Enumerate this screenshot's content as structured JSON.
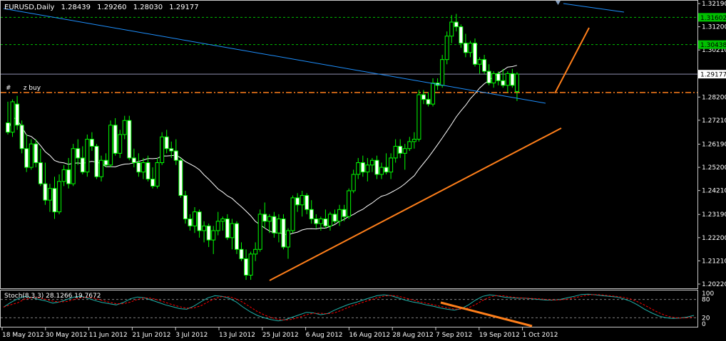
{
  "header": {
    "symbol": "EURUSD,Daily",
    "open": "1.28439",
    "high": "1.29260",
    "low": "1.28030",
    "close": "1.29177"
  },
  "order_label": "#      z buy",
  "stoch_header": "Stoch(8,3,3) 28.1266 19.7672",
  "price_axis": [
    "1.32190",
    "1.31200",
    "1.30210",
    "1.29177",
    "1.28200",
    "1.27210",
    "1.26190",
    "1.25200",
    "1.24210",
    "1.23190",
    "1.22200",
    "1.21210",
    "1.20220"
  ],
  "price_tags": [
    {
      "text": "1.31602",
      "bg": "#00c000",
      "fg": "#000000"
    },
    {
      "text": "1.30438",
      "bg": "#00c000",
      "fg": "#000000"
    },
    {
      "text": "1.29177",
      "bg": "#ffffff",
      "fg": "#000000"
    }
  ],
  "stoch_axis": [
    "100",
    "80",
    "20",
    "0"
  ],
  "date_axis": [
    "18 May 2012",
    "30 May 2012",
    "11 Jun 2012",
    "21 Jun 2012",
    "3 Jul 2012",
    "13 Jul 2012",
    "25 Jul 2012",
    "6 Aug 2012",
    "16 Aug 2012",
    "28 Aug 2012",
    "7 Sep 2012",
    "19 Sep 2012",
    "1 Oct 2012"
  ],
  "colors": {
    "background": "#000000",
    "candle": "#00ff00",
    "bear_body": "#ffffff",
    "ma": "#ffffff",
    "trend_blue": "#1e90ff",
    "trend_orange": "#ff7f1a",
    "level_green": "#00c000",
    "stoch_main": "#20b2aa",
    "stoch_signal": "#ff0000"
  },
  "chart_data": {
    "type": "candlestick",
    "symbol": "EURUSD",
    "timeframe": "Daily",
    "ylim": [
      1.2022,
      1.3219
    ],
    "levels": [
      1.31602,
      1.30438,
      1.29177
    ],
    "candles": [
      {
        "o": 1.271,
        "h": 1.28,
        "l": 1.266,
        "c": 1.267
      },
      {
        "o": 1.267,
        "h": 1.281,
        "l": 1.265,
        "c": 1.28
      },
      {
        "o": 1.279,
        "h": 1.2825,
        "l": 1.268,
        "c": 1.27
      },
      {
        "o": 1.27,
        "h": 1.272,
        "l": 1.258,
        "c": 1.26
      },
      {
        "o": 1.26,
        "h": 1.266,
        "l": 1.25,
        "c": 1.252
      },
      {
        "o": 1.252,
        "h": 1.264,
        "l": 1.251,
        "c": 1.262
      },
      {
        "o": 1.262,
        "h": 1.264,
        "l": 1.252,
        "c": 1.254
      },
      {
        "o": 1.254,
        "h": 1.26,
        "l": 1.244,
        "c": 1.245
      },
      {
        "o": 1.245,
        "h": 1.254,
        "l": 1.236,
        "c": 1.238
      },
      {
        "o": 1.238,
        "h": 1.245,
        "l": 1.233,
        "c": 1.243
      },
      {
        "o": 1.243,
        "h": 1.248,
        "l": 1.23,
        "c": 1.233
      },
      {
        "o": 1.233,
        "h": 1.249,
        "l": 1.232,
        "c": 1.246
      },
      {
        "o": 1.246,
        "h": 1.253,
        "l": 1.244,
        "c": 1.251
      },
      {
        "o": 1.251,
        "h": 1.256,
        "l": 1.243,
        "c": 1.245
      },
      {
        "o": 1.245,
        "h": 1.262,
        "l": 1.244,
        "c": 1.26
      },
      {
        "o": 1.26,
        "h": 1.264,
        "l": 1.253,
        "c": 1.256
      },
      {
        "o": 1.256,
        "h": 1.261,
        "l": 1.249,
        "c": 1.25
      },
      {
        "o": 1.25,
        "h": 1.266,
        "l": 1.248,
        "c": 1.264
      },
      {
        "o": 1.264,
        "h": 1.267,
        "l": 1.259,
        "c": 1.261
      },
      {
        "o": 1.261,
        "h": 1.262,
        "l": 1.247,
        "c": 1.248
      },
      {
        "o": 1.248,
        "h": 1.257,
        "l": 1.246,
        "c": 1.255
      },
      {
        "o": 1.255,
        "h": 1.258,
        "l": 1.252,
        "c": 1.253
      },
      {
        "o": 1.253,
        "h": 1.272,
        "l": 1.252,
        "c": 1.27
      },
      {
        "o": 1.27,
        "h": 1.273,
        "l": 1.257,
        "c": 1.258
      },
      {
        "o": 1.258,
        "h": 1.268,
        "l": 1.256,
        "c": 1.266
      },
      {
        "o": 1.266,
        "h": 1.274,
        "l": 1.264,
        "c": 1.272
      },
      {
        "o": 1.272,
        "h": 1.274,
        "l": 1.255,
        "c": 1.256
      },
      {
        "o": 1.256,
        "h": 1.26,
        "l": 1.252,
        "c": 1.254
      },
      {
        "o": 1.254,
        "h": 1.258,
        "l": 1.248,
        "c": 1.25
      },
      {
        "o": 1.25,
        "h": 1.256,
        "l": 1.247,
        "c": 1.254
      },
      {
        "o": 1.254,
        "h": 1.257,
        "l": 1.246,
        "c": 1.247
      },
      {
        "o": 1.247,
        "h": 1.252,
        "l": 1.243,
        "c": 1.244
      },
      {
        "o": 1.244,
        "h": 1.256,
        "l": 1.243,
        "c": 1.254
      },
      {
        "o": 1.254,
        "h": 1.267,
        "l": 1.253,
        "c": 1.265
      },
      {
        "o": 1.265,
        "h": 1.268,
        "l": 1.258,
        "c": 1.26
      },
      {
        "o": 1.26,
        "h": 1.263,
        "l": 1.256,
        "c": 1.259
      },
      {
        "o": 1.259,
        "h": 1.264,
        "l": 1.253,
        "c": 1.255
      },
      {
        "o": 1.255,
        "h": 1.256,
        "l": 1.239,
        "c": 1.24
      },
      {
        "o": 1.24,
        "h": 1.242,
        "l": 1.228,
        "c": 1.23
      },
      {
        "o": 1.23,
        "h": 1.232,
        "l": 1.225,
        "c": 1.227
      },
      {
        "o": 1.227,
        "h": 1.235,
        "l": 1.224,
        "c": 1.233
      },
      {
        "o": 1.233,
        "h": 1.234,
        "l": 1.222,
        "c": 1.225
      },
      {
        "o": 1.225,
        "h": 1.229,
        "l": 1.22,
        "c": 1.227
      },
      {
        "o": 1.227,
        "h": 1.228,
        "l": 1.218,
        "c": 1.221
      },
      {
        "o": 1.221,
        "h": 1.227,
        "l": 1.215,
        "c": 1.225
      },
      {
        "o": 1.225,
        "h": 1.233,
        "l": 1.223,
        "c": 1.229
      },
      {
        "o": 1.229,
        "h": 1.231,
        "l": 1.225,
        "c": 1.23
      },
      {
        "o": 1.23,
        "h": 1.232,
        "l": 1.221,
        "c": 1.222
      },
      {
        "o": 1.222,
        "h": 1.23,
        "l": 1.217,
        "c": 1.228
      },
      {
        "o": 1.228,
        "h": 1.229,
        "l": 1.215,
        "c": 1.217
      },
      {
        "o": 1.217,
        "h": 1.22,
        "l": 1.212,
        "c": 1.213
      },
      {
        "o": 1.213,
        "h": 1.217,
        "l": 1.204,
        "c": 1.206
      },
      {
        "o": 1.206,
        "h": 1.216,
        "l": 1.204,
        "c": 1.215
      },
      {
        "o": 1.215,
        "h": 1.22,
        "l": 1.212,
        "c": 1.217
      },
      {
        "o": 1.217,
        "h": 1.234,
        "l": 1.216,
        "c": 1.232
      },
      {
        "o": 1.232,
        "h": 1.237,
        "l": 1.226,
        "c": 1.229
      },
      {
        "o": 1.229,
        "h": 1.232,
        "l": 1.224,
        "c": 1.231
      },
      {
        "o": 1.231,
        "h": 1.233,
        "l": 1.222,
        "c": 1.224
      },
      {
        "o": 1.224,
        "h": 1.232,
        "l": 1.22,
        "c": 1.23
      },
      {
        "o": 1.23,
        "h": 1.232,
        "l": 1.217,
        "c": 1.218
      },
      {
        "o": 1.218,
        "h": 1.226,
        "l": 1.213,
        "c": 1.225
      },
      {
        "o": 1.225,
        "h": 1.24,
        "l": 1.224,
        "c": 1.239
      },
      {
        "o": 1.239,
        "h": 1.241,
        "l": 1.233,
        "c": 1.236
      },
      {
        "o": 1.236,
        "h": 1.242,
        "l": 1.231,
        "c": 1.24
      },
      {
        "o": 1.24,
        "h": 1.241,
        "l": 1.232,
        "c": 1.234
      },
      {
        "o": 1.234,
        "h": 1.238,
        "l": 1.228,
        "c": 1.23
      },
      {
        "o": 1.23,
        "h": 1.232,
        "l": 1.226,
        "c": 1.228
      },
      {
        "o": 1.228,
        "h": 1.231,
        "l": 1.225,
        "c": 1.23
      },
      {
        "o": 1.23,
        "h": 1.234,
        "l": 1.226,
        "c": 1.227
      },
      {
        "o": 1.227,
        "h": 1.233,
        "l": 1.225,
        "c": 1.232
      },
      {
        "o": 1.232,
        "h": 1.234,
        "l": 1.228,
        "c": 1.229
      },
      {
        "o": 1.229,
        "h": 1.236,
        "l": 1.227,
        "c": 1.234
      },
      {
        "o": 1.234,
        "h": 1.236,
        "l": 1.229,
        "c": 1.231
      },
      {
        "o": 1.231,
        "h": 1.243,
        "l": 1.23,
        "c": 1.242
      },
      {
        "o": 1.242,
        "h": 1.251,
        "l": 1.241,
        "c": 1.249
      },
      {
        "o": 1.249,
        "h": 1.256,
        "l": 1.247,
        "c": 1.254
      },
      {
        "o": 1.254,
        "h": 1.257,
        "l": 1.248,
        "c": 1.25
      },
      {
        "o": 1.25,
        "h": 1.256,
        "l": 1.246,
        "c": 1.253
      },
      {
        "o": 1.253,
        "h": 1.256,
        "l": 1.25,
        "c": 1.255
      },
      {
        "o": 1.255,
        "h": 1.257,
        "l": 1.247,
        "c": 1.249
      },
      {
        "o": 1.249,
        "h": 1.254,
        "l": 1.247,
        "c": 1.252
      },
      {
        "o": 1.252,
        "h": 1.258,
        "l": 1.249,
        "c": 1.25
      },
      {
        "o": 1.25,
        "h": 1.258,
        "l": 1.247,
        "c": 1.256
      },
      {
        "o": 1.256,
        "h": 1.264,
        "l": 1.254,
        "c": 1.261
      },
      {
        "o": 1.261,
        "h": 1.264,
        "l": 1.256,
        "c": 1.258
      },
      {
        "o": 1.258,
        "h": 1.262,
        "l": 1.251,
        "c": 1.26
      },
      {
        "o": 1.26,
        "h": 1.265,
        "l": 1.259,
        "c": 1.263
      },
      {
        "o": 1.263,
        "h": 1.267,
        "l": 1.26,
        "c": 1.264
      },
      {
        "o": 1.264,
        "h": 1.285,
        "l": 1.263,
        "c": 1.283
      },
      {
        "o": 1.283,
        "h": 1.285,
        "l": 1.279,
        "c": 1.281
      },
      {
        "o": 1.281,
        "h": 1.284,
        "l": 1.278,
        "c": 1.279
      },
      {
        "o": 1.279,
        "h": 1.29,
        "l": 1.278,
        "c": 1.288
      },
      {
        "o": 1.288,
        "h": 1.29,
        "l": 1.285,
        "c": 1.287
      },
      {
        "o": 1.287,
        "h": 1.3,
        "l": 1.286,
        "c": 1.298
      },
      {
        "o": 1.298,
        "h": 1.31,
        "l": 1.296,
        "c": 1.308
      },
      {
        "o": 1.308,
        "h": 1.317,
        "l": 1.305,
        "c": 1.314
      },
      {
        "o": 1.314,
        "h": 1.3175,
        "l": 1.31,
        "c": 1.312
      },
      {
        "o": 1.312,
        "h": 1.313,
        "l": 1.303,
        "c": 1.305
      },
      {
        "o": 1.305,
        "h": 1.309,
        "l": 1.299,
        "c": 1.301
      },
      {
        "o": 1.301,
        "h": 1.306,
        "l": 1.299,
        "c": 1.305
      },
      {
        "o": 1.305,
        "h": 1.307,
        "l": 1.295,
        "c": 1.296
      },
      {
        "o": 1.296,
        "h": 1.299,
        "l": 1.292,
        "c": 1.298
      },
      {
        "o": 1.298,
        "h": 1.3,
        "l": 1.292,
        "c": 1.293
      },
      {
        "o": 1.293,
        "h": 1.296,
        "l": 1.287,
        "c": 1.288
      },
      {
        "o": 1.288,
        "h": 1.293,
        "l": 1.286,
        "c": 1.292
      },
      {
        "o": 1.292,
        "h": 1.293,
        "l": 1.287,
        "c": 1.289
      },
      {
        "o": 1.289,
        "h": 1.294,
        "l": 1.286,
        "c": 1.287
      },
      {
        "o": 1.287,
        "h": 1.293,
        "l": 1.284,
        "c": 1.292
      },
      {
        "o": 1.292,
        "h": 1.294,
        "l": 1.286,
        "c": 1.287
      },
      {
        "o": 1.2844,
        "h": 1.2926,
        "l": 1.2803,
        "c": 1.2918
      }
    ],
    "stochastic": {
      "k": 28.1266,
      "d": 19.7672,
      "levels": [
        20,
        80
      ]
    }
  }
}
